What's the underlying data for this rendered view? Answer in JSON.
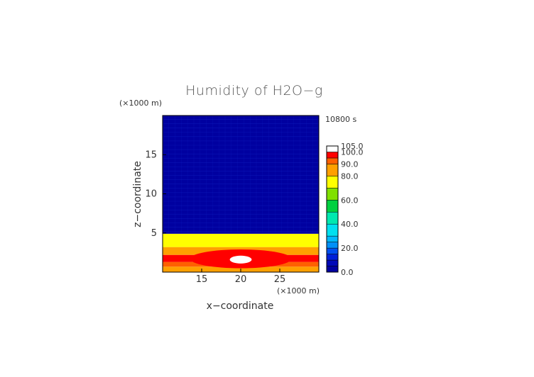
{
  "chart_data": {
    "type": "heatmap",
    "title": "Humidity of H2O−g",
    "time_label": "10800 s",
    "xlabel": "x−coordinate",
    "ylabel": "z−coordinate",
    "x_unit": "(×1000 m)",
    "z_unit": "(×1000 m)",
    "xlim": [
      10,
      30
    ],
    "zlim": [
      0,
      20
    ],
    "x_ticks": [
      "15",
      "20",
      "25"
    ],
    "z_ticks": [
      "5",
      "10",
      "15"
    ],
    "x_tick_values": [
      15,
      20,
      25
    ],
    "z_tick_values": [
      5,
      10,
      15
    ],
    "colorbar": {
      "range": [
        0,
        105
      ],
      "labels": [
        "0.0",
        "20.0",
        "40.0",
        "60.0",
        "80.0",
        "90.0",
        "100.0",
        "105.0"
      ],
      "label_values": [
        0,
        20,
        40,
        60,
        80,
        90,
        100,
        105
      ],
      "levels": [
        {
          "min": 0,
          "max": 5,
          "color": "#0000a0"
        },
        {
          "min": 5,
          "max": 10,
          "color": "#0008b8"
        },
        {
          "min": 10,
          "max": 15,
          "color": "#0020d8"
        },
        {
          "min": 15,
          "max": 20,
          "color": "#0050f0"
        },
        {
          "min": 20,
          "max": 25,
          "color": "#0090f8"
        },
        {
          "min": 25,
          "max": 30,
          "color": "#00b8ff"
        },
        {
          "min": 30,
          "max": 40,
          "color": "#00e0f0"
        },
        {
          "min": 40,
          "max": 50,
          "color": "#00e8b0"
        },
        {
          "min": 50,
          "max": 60,
          "color": "#00d040"
        },
        {
          "min": 60,
          "max": 70,
          "color": "#80e000"
        },
        {
          "min": 70,
          "max": 80,
          "color": "#ffff00"
        },
        {
          "min": 80,
          "max": 90,
          "color": "#ffa000"
        },
        {
          "min": 90,
          "max": 95,
          "color": "#ff6000"
        },
        {
          "min": 95,
          "max": 100,
          "color": "#ff0000"
        },
        {
          "min": 100,
          "max": 105,
          "color": "#ffffff"
        }
      ]
    },
    "field": {
      "description_layers_z_km": [
        {
          "z_min": 0.0,
          "z_max": 0.7,
          "value": 85
        },
        {
          "z_min": 0.7,
          "z_max": 1.3,
          "value": 92
        },
        {
          "z_min": 1.3,
          "z_max": 2.2,
          "value": 97
        },
        {
          "z_min": 2.2,
          "z_max": 3.2,
          "value": 86
        },
        {
          "z_min": 3.2,
          "z_max": 4.9,
          "value": 75
        },
        {
          "z_min": 4.9,
          "z_max": 20.0,
          "value": 2
        }
      ],
      "core": [
        {
          "x_center": 20,
          "z_center": 1.6,
          "x_halfwidth": 1.4,
          "z_halfwidth": 0.5,
          "value": 101
        },
        {
          "x_center": 20,
          "z_center": 1.7,
          "x_halfwidth": 6.5,
          "z_halfwidth": 1.2,
          "value": 97
        }
      ]
    }
  }
}
